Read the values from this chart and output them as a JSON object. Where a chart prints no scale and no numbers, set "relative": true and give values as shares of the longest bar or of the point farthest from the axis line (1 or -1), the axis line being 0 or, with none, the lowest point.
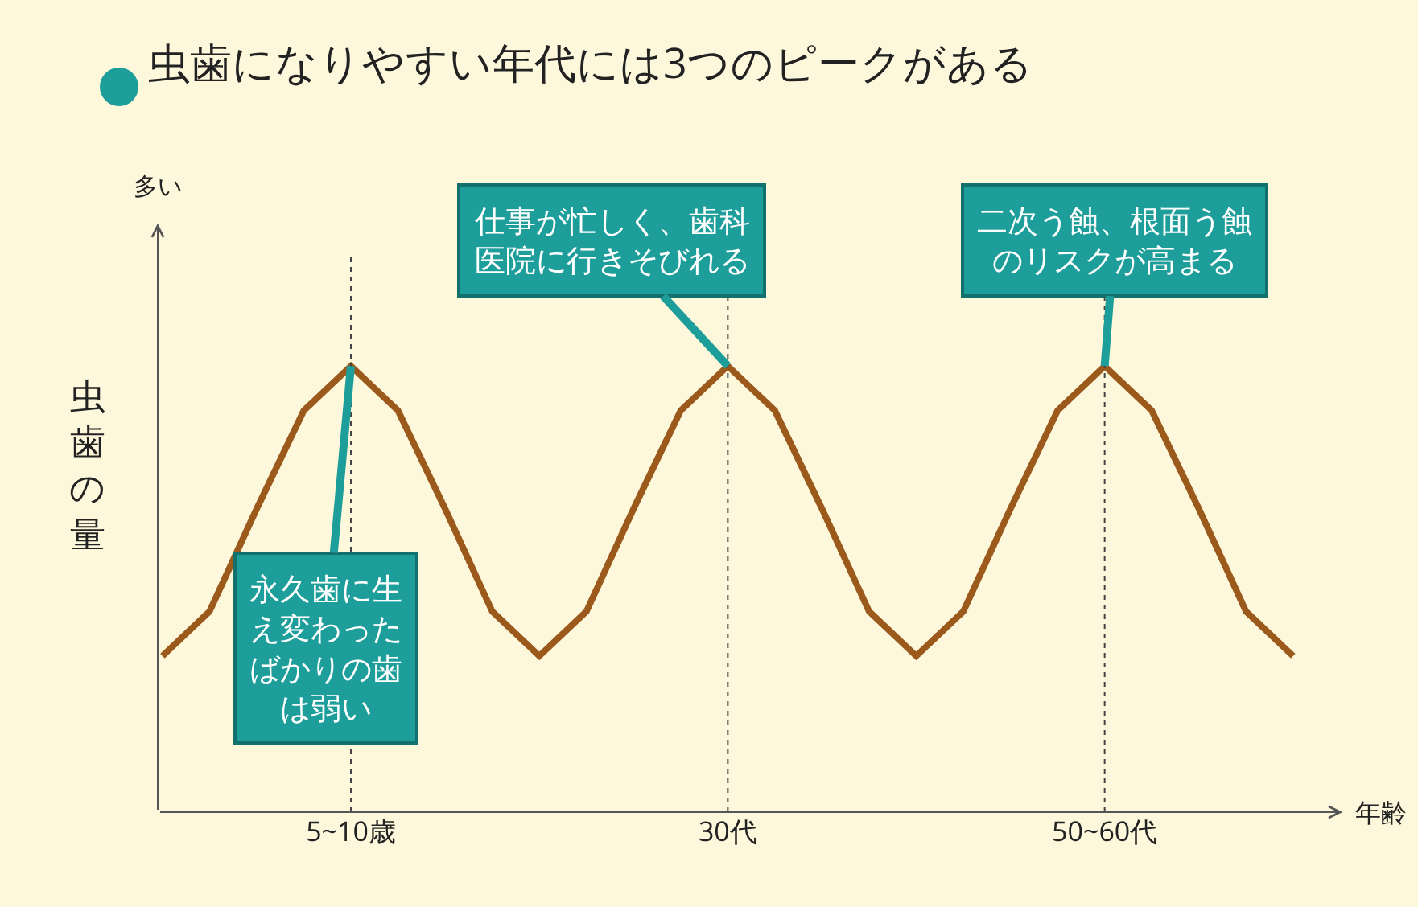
{
  "chart_data": {
    "type": "line",
    "title": "虫歯になりやすい年代には3つのピークがある",
    "xlabel": "年齢",
    "ylabel": "虫歯の量",
    "relative": true,
    "categories": [
      null,
      null,
      null,
      null,
      "5~10歳",
      null,
      null,
      null,
      null,
      null,
      null,
      null,
      "30代",
      null,
      null,
      null,
      null,
      null,
      null,
      null,
      "50~60代",
      null,
      null,
      null,
      null
    ],
    "series": [
      {
        "color": "#9b5a1c",
        "values": [
          0.35,
          0.45,
          0.68,
          0.9,
          1,
          0.9,
          0.68,
          0.45,
          0.35,
          0.45,
          0.68,
          0.9,
          1,
          0.9,
          0.68,
          0.45,
          0.35,
          0.45,
          0.68,
          0.9,
          1,
          0.9,
          0.68,
          0.45,
          0.35
        ]
      }
    ],
    "line_style": "solid",
    "marker": "none",
    "grid": false,
    "ref_lines": [
      {
        "axis": "x",
        "value": "5~10歳",
        "line_style": "dotted"
      },
      {
        "axis": "x",
        "value": "30代",
        "line_style": "dotted"
      },
      {
        "axis": "x",
        "value": "50~60代",
        "line_style": "dotted"
      }
    ],
    "annotations": [
      "多い",
      {
        "text": "永久歯に生え変わったばかりの歯は弱い",
        "x": "5~10歳",
        "y": 1
      },
      {
        "text": "仕事が忙しく、歯科医院に行きそびれる",
        "x": "30代",
        "y": 1
      },
      {
        "text": "二次う蝕、根面う蝕のリスクが高まる",
        "x": "50~60代",
        "y": 1
      }
    ]
  }
}
